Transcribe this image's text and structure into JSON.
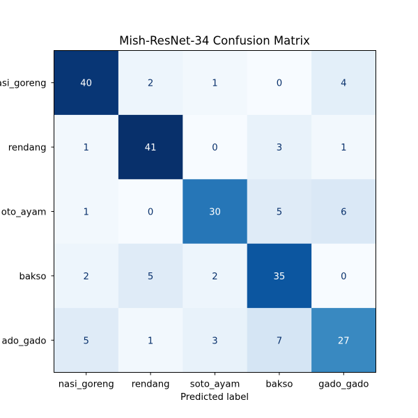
{
  "chart_data": {
    "type": "heatmap",
    "title": "Mish-ResNet-34 Confusion Matrix",
    "xlabel": "Predicted label",
    "ylabel": "",
    "x_categories": [
      "nasi_goreng",
      "rendang",
      "soto_ayam",
      "bakso",
      "gado_gado"
    ],
    "y_categories": [
      "nasi_goreng",
      "rendang",
      "soto_ayam",
      "bakso",
      "gado_gado"
    ],
    "y_tick_labels_visible": [
      "asi_goreng",
      "rendang",
      "oto_ayam",
      "bakso",
      "ado_gado"
    ],
    "matrix": [
      [
        40,
        2,
        1,
        0,
        4
      ],
      [
        1,
        41,
        0,
        3,
        1
      ],
      [
        1,
        0,
        30,
        5,
        6
      ],
      [
        2,
        5,
        2,
        35,
        0
      ],
      [
        5,
        1,
        3,
        7,
        27
      ]
    ],
    "value_range": [
      0,
      41
    ],
    "colormap": "Blues",
    "colormap_low": "#f7fbff",
    "colormap_high": "#08306b",
    "text_color_light_cells": "#08306b",
    "text_color_dark_cells": "#ffffff",
    "grid": false,
    "legend": "none"
  }
}
